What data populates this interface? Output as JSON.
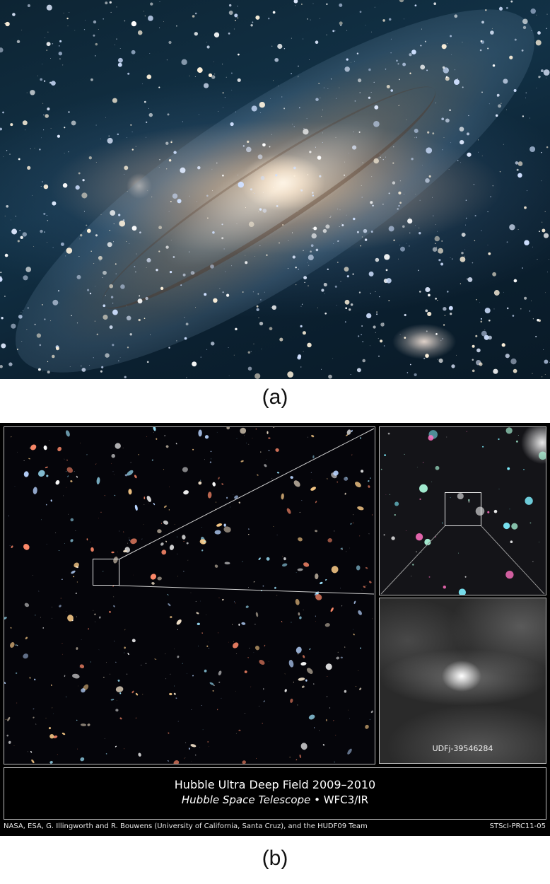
{
  "figure": {
    "label_a": "(a)",
    "label_b": "(b)"
  },
  "panel_b": {
    "caption_title": "Hubble Ultra Deep Field 2009–2010",
    "caption_telescope": "Hubble Space Telescope",
    "caption_separator": "•",
    "caption_instrument": "WFC3/IR",
    "zoom_label": "UDFj-39546284",
    "credits": "NASA, ESA, G. Illingworth and R. Bouwens (University of California, Santa Cruz), and the HUDF09 Team",
    "release_id": "STScI-PRC11-05"
  },
  "colors": {
    "page_background": "#ffffff",
    "panel_b_background": "#000000",
    "frame_border": "#bdbdbd",
    "andromeda_sky": "#0d2433"
  }
}
